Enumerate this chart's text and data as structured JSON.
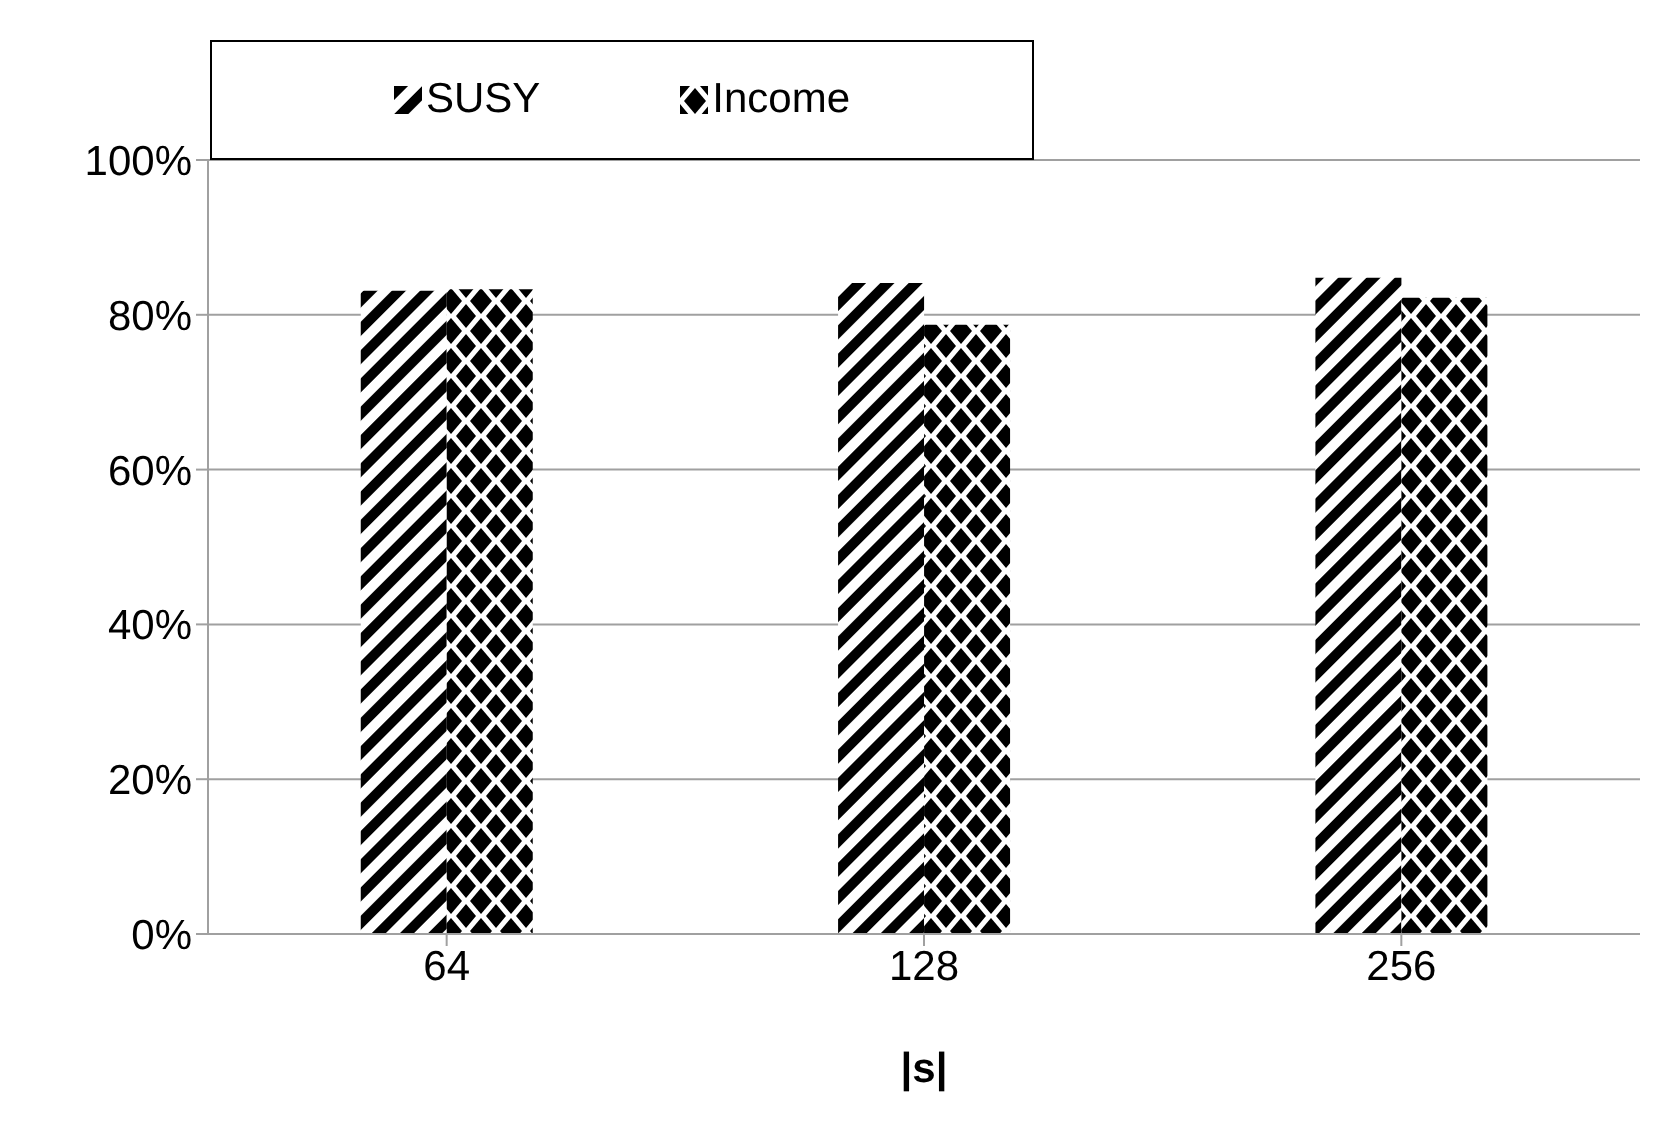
{
  "chart_data": {
    "type": "bar",
    "xlabel": "|s|",
    "categories": [
      "64",
      "128",
      "256"
    ],
    "series": [
      {
        "name": "SUSY",
        "color": "#000000",
        "values": [
          83.1,
          84.1,
          84.8
        ]
      },
      {
        "name": "Income",
        "color": "#000000",
        "values": [
          83.3,
          78.7,
          82.2
        ]
      }
    ],
    "ylim": [
      0,
      100
    ],
    "yticks": [
      {
        "value": 0,
        "label": "0%"
      },
      {
        "value": 20,
        "label": "20%"
      },
      {
        "value": 40,
        "label": "40%"
      },
      {
        "value": 60,
        "label": "60%"
      },
      {
        "value": 80,
        "label": "80%"
      },
      {
        "value": 100,
        "label": "100%"
      }
    ],
    "grid": "y",
    "legend": "top left"
  }
}
